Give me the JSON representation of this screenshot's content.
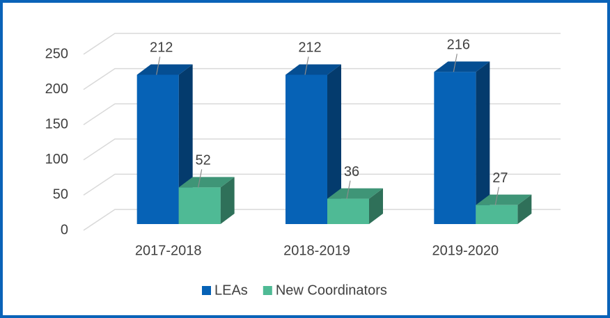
{
  "chart_data": {
    "type": "bar3d",
    "categories": [
      "2017-2018",
      "2018-2019",
      "2019-2020"
    ],
    "series": [
      {
        "name": "LEAs",
        "color": "#0662b6",
        "values": [
          212,
          212,
          216
        ]
      },
      {
        "name": "New Coordinators",
        "color": "#4fba95",
        "values": [
          52,
          36,
          27
        ]
      }
    ],
    "ylim": [
      0,
      250
    ],
    "yticks": [
      0,
      50,
      100,
      150,
      200,
      250
    ],
    "grid": true,
    "legend": "bottom"
  }
}
